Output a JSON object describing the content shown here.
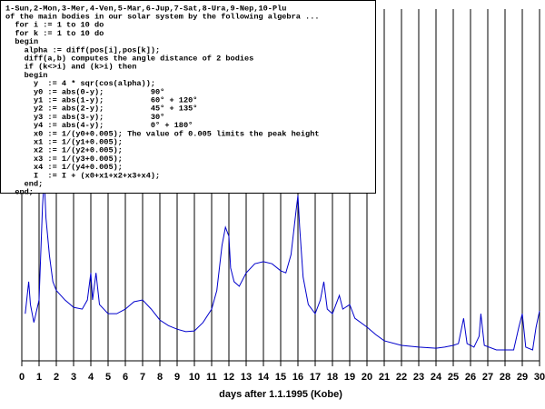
{
  "chart_data": {
    "type": "line",
    "xlabel": "days after 1.1.1995 (Kobe)",
    "xlim": [
      0,
      30
    ],
    "xticks": [
      0,
      1,
      2,
      3,
      4,
      5,
      6,
      7,
      8,
      9,
      10,
      11,
      12,
      13,
      14,
      15,
      16,
      17,
      18,
      19,
      20,
      21,
      22,
      23,
      24,
      25,
      26,
      27,
      28,
      29,
      30
    ],
    "ylim": [
      0,
      100
    ],
    "grid": true,
    "color": "#0000cc",
    "x": [
      0.2,
      0.4,
      0.5,
      0.7,
      1.0,
      1.2,
      1.3,
      1.4,
      1.6,
      1.8,
      2.0,
      2.5,
      3.0,
      3.5,
      3.8,
      4.0,
      4.1,
      4.3,
      4.5,
      5,
      5.5,
      6,
      6.5,
      7,
      7.5,
      8,
      8.5,
      9,
      9.5,
      10,
      10.5,
      11,
      11.3,
      11.6,
      11.8,
      12.0,
      12.1,
      12.3,
      12.6,
      13,
      13.5,
      14,
      14.5,
      15,
      15.3,
      15.6,
      15.9,
      16.0,
      16.1,
      16.3,
      16.6,
      17,
      17.3,
      17.5,
      17.7,
      18,
      18.4,
      18.6,
      19,
      19.3,
      20,
      20.5,
      21,
      22,
      23,
      24,
      24.5,
      25,
      25.3,
      25.6,
      25.8,
      26.2,
      26.5,
      26.6,
      26.8,
      27.5,
      28,
      28.5,
      28.8,
      29.0,
      29.2,
      29.6,
      29.8,
      30
    ],
    "values": [
      13.4,
      22.5,
      16,
      10.9,
      17.3,
      44,
      52,
      40.6,
      30,
      22.5,
      20,
      17.3,
      15.2,
      14.7,
      17.3,
      25,
      17.3,
      25,
      16,
      13.4,
      13.4,
      14.7,
      16.8,
      17.3,
      14.7,
      11.6,
      10,
      9,
      8.3,
      8.5,
      10.9,
      14.7,
      20,
      32.8,
      38,
      35.4,
      26.4,
      22.5,
      21.2,
      25,
      27.6,
      28.2,
      27.6,
      25.6,
      25,
      30.2,
      43,
      47,
      38,
      23.8,
      16,
      13.4,
      17.3,
      22.5,
      14.7,
      13.4,
      18.6,
      14.7,
      16,
      12.1,
      9.6,
      7.5,
      5.7,
      4.4,
      3.9,
      3.6,
      3.9,
      4.4,
      4.9,
      12.1,
      4.9,
      3.9,
      7,
      13.4,
      4.4,
      3.1,
      3.1,
      3.1,
      9.6,
      13.4,
      3.9,
      3.1,
      9.6,
      14.2
    ],
    "annotation_lines": [
      "1-Sun,2-Mon,3-Mer,4-Ven,5-Mar,6-Jup,7-Sat,8-Ura,9-Nep,10-Plu",
      "of the main bodies in our solar system by the following algebra ...",
      "  for i := 1 to 10 do",
      "  for k := 1 to 10 do",
      "  begin",
      "    alpha := diff(pos[i],pos[k]);",
      "    diff(a,b) computes the angle distance of 2 bodies",
      "    if (k<>i) and (k>i) then",
      "    begin",
      "      y  := 4 * sqr(cos(alpha));",
      "      y0 := abs(0-y);          90°",
      "      y1 := abs(1-y);          60° + 120°",
      "      y2 := abs(2-y);          45° + 135°",
      "      y3 := abs(3-y);          30°",
      "      y4 := abs(4-y);          0° + 180°",
      "      x0 := 1/(y0+0.005); The value of 0.005 limits the peak height",
      "      x1 := 1/(y1+0.005);",
      "      x2 := 1/(y2+0.005);",
      "      x3 := 1/(y3+0.005);",
      "      x4 := 1/(y4+0.005);",
      "      I  := I + (x0+x1+x2+x3+x4);",
      "    end;",
      "  end;"
    ]
  }
}
